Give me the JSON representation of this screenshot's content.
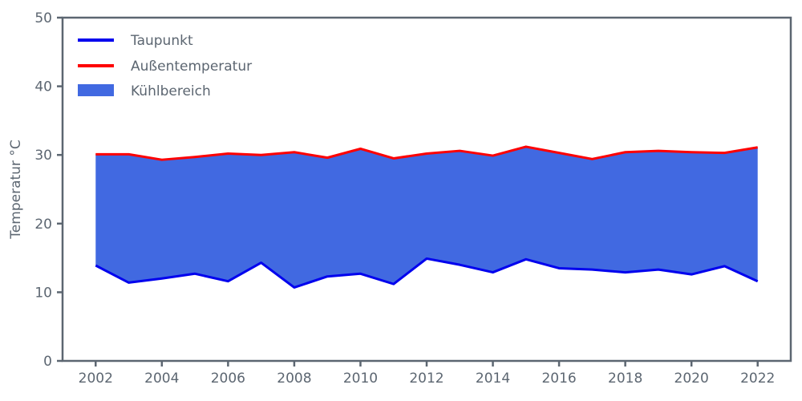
{
  "chart_data": {
    "type": "area",
    "title": "",
    "xlabel": "",
    "ylabel": "Temperatur °C",
    "xlim": [
      2001,
      2023
    ],
    "ylim": [
      0,
      50
    ],
    "grid": false,
    "legend_position": "upper-left",
    "x": [
      2002,
      2003,
      2004,
      2005,
      2006,
      2007,
      2008,
      2009,
      2010,
      2011,
      2012,
      2013,
      2014,
      2015,
      2016,
      2017,
      2018,
      2019,
      2020,
      2021,
      2022
    ],
    "series": [
      {
        "name": "Taupunkt",
        "color": "#0000ee",
        "values": [
          13.9,
          11.4,
          12.0,
          12.7,
          11.6,
          14.3,
          10.7,
          12.3,
          12.7,
          11.2,
          14.9,
          14.0,
          12.9,
          14.8,
          13.5,
          13.3,
          12.9,
          13.3,
          12.6,
          13.8,
          11.6
        ]
      },
      {
        "name": "Außentemperatur",
        "color": "#fe0000",
        "values": [
          30.1,
          30.1,
          29.3,
          29.7,
          30.2,
          30.0,
          30.4,
          29.6,
          30.9,
          29.5,
          30.2,
          30.6,
          29.9,
          31.2,
          30.3,
          29.4,
          30.4,
          30.6,
          30.4,
          30.3,
          31.1
        ]
      }
    ],
    "area": {
      "name": "Kühlbereich",
      "fill_color": "#4169e1",
      "between": [
        "Taupunkt",
        "Außentemperatur"
      ]
    },
    "xticks": [
      2002,
      2004,
      2006,
      2008,
      2010,
      2012,
      2014,
      2016,
      2018,
      2020,
      2022
    ],
    "yticks": [
      0,
      10,
      20,
      30,
      40,
      50
    ],
    "legend": [
      {
        "label": "Taupunkt",
        "swatch": "line",
        "color": "#0000ee"
      },
      {
        "label": "Außentemperatur",
        "swatch": "line",
        "color": "#fe0000"
      },
      {
        "label": "Kühlbereich",
        "swatch": "patch",
        "color": "#4169e1"
      }
    ],
    "colors": {
      "taupunkt_line": "#0000ee",
      "aussentemperatur_line": "#fe0000",
      "kuehlbereich_fill": "#4169e1",
      "axis_and_text": "#5c6671",
      "background": "#ffffff"
    }
  }
}
